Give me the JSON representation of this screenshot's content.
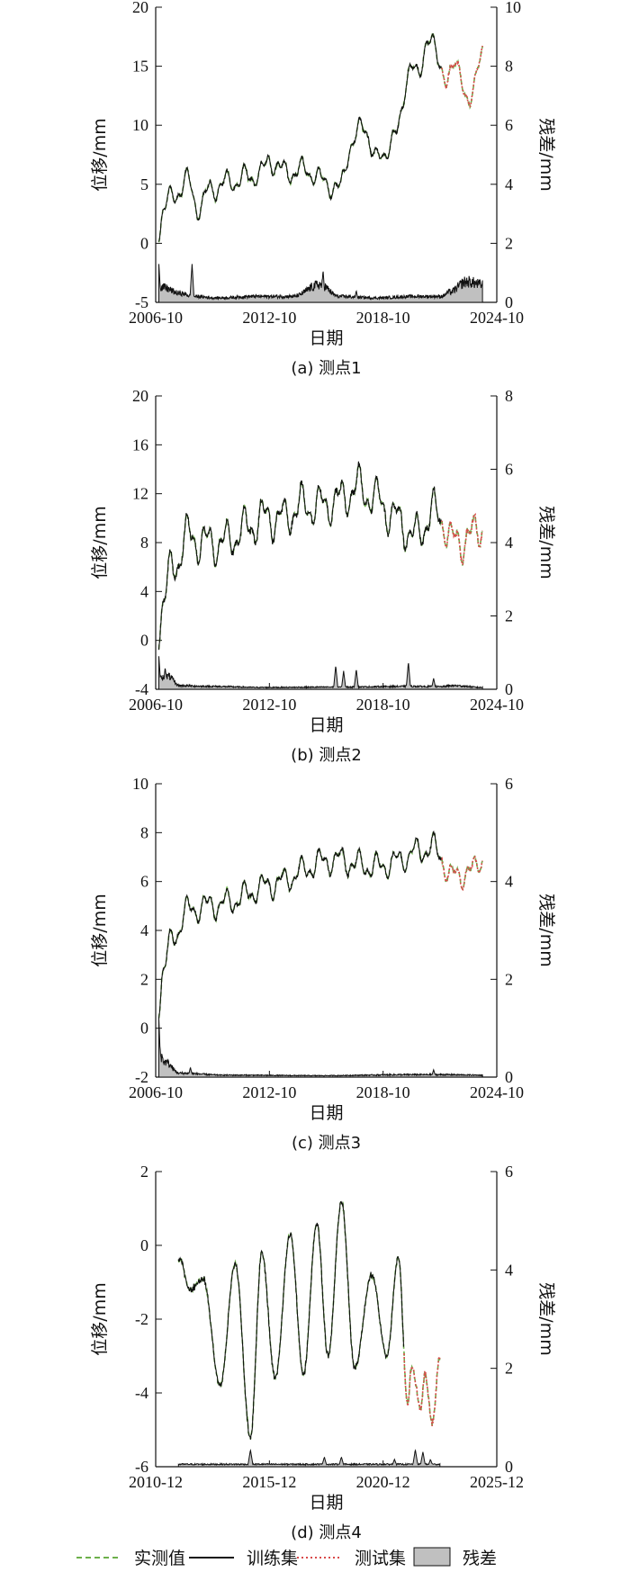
{
  "colors": {
    "measured": "#6cb04a",
    "train": "#111111",
    "test": "#d94a4a",
    "residual_fill": "#c0c0c0",
    "residual_line": "#111111"
  },
  "legend": [
    {
      "key": "measured",
      "label": "实测值",
      "style": "dashed-line"
    },
    {
      "key": "train",
      "label": "训练集",
      "style": "solid-line"
    },
    {
      "key": "test",
      "label": "测试集",
      "style": "dotted-line"
    },
    {
      "key": "residual",
      "label": "残差",
      "style": "filled-box"
    }
  ],
  "chart_data": [
    {
      "type": "line",
      "caption": "(a) 测点1",
      "xlabel": "日期",
      "ylabel": "位移/mm",
      "y2label": "残差/mm",
      "x_range": [
        "2006-10",
        "2024-10"
      ],
      "x_ticks": [
        "2006-10",
        "2012-10",
        "2018-10",
        "2024-10"
      ],
      "ylim": [
        -5,
        20
      ],
      "y_ticks": [
        -5,
        0,
        5,
        10,
        15,
        20
      ],
      "y2lim": [
        0,
        10
      ],
      "y2_ticks": [
        0,
        2,
        4,
        6,
        8,
        10
      ],
      "train_end": "2021-11",
      "test_end": "2024-01",
      "displacement_trend": [
        [
          "2006-12",
          1.0
        ],
        [
          "2007-03",
          3.0
        ],
        [
          "2007-09",
          4.0
        ],
        [
          "2008-06",
          5.3
        ],
        [
          "2009-01",
          3.0
        ],
        [
          "2009-09",
          4.6
        ],
        [
          "2010-09",
          5.2
        ],
        [
          "2011-09",
          5.6
        ],
        [
          "2012-05",
          6.0
        ],
        [
          "2012-10",
          7.0
        ],
        [
          "2013-09",
          6.0
        ],
        [
          "2014-09",
          6.2
        ],
        [
          "2015-09",
          5.2
        ],
        [
          "2016-06",
          4.5
        ],
        [
          "2017-02",
          8.5
        ],
        [
          "2017-10",
          10.0
        ],
        [
          "2018-06",
          7.0
        ],
        [
          "2019-06",
          9.0
        ],
        [
          "2020-03",
          15.0
        ],
        [
          "2020-08",
          14.0
        ],
        [
          "2021-02",
          17.5
        ],
        [
          "2021-11",
          15.0
        ],
        [
          "2022-03",
          14.0
        ],
        [
          "2022-10",
          15.0
        ],
        [
          "2023-05",
          11.5
        ],
        [
          "2024-01",
          17.0
        ]
      ],
      "displacement_amp": 1.6,
      "residual_trend": [
        [
          "2006-12",
          0.6
        ],
        [
          "2007-02",
          0.5
        ],
        [
          "2008-02",
          0.3
        ],
        [
          "2008-10",
          0.2
        ],
        [
          "2010-01",
          0.15
        ],
        [
          "2012-01",
          0.2
        ],
        [
          "2014-01",
          0.2
        ],
        [
          "2015-06",
          0.6
        ],
        [
          "2016-06",
          0.2
        ],
        [
          "2018-06",
          0.15
        ],
        [
          "2020-06",
          0.2
        ],
        [
          "2021-11",
          0.2
        ],
        [
          "2022-04",
          0.35
        ],
        [
          "2023-03",
          0.7
        ],
        [
          "2024-01",
          0.6
        ]
      ],
      "residual_spikes": [
        [
          "2006-12",
          1.3
        ],
        [
          "2008-09",
          1.3
        ],
        [
          "2015-08",
          1.1
        ],
        [
          "2017-05",
          0.4
        ]
      ]
    },
    {
      "type": "line",
      "caption": "(b) 测点2",
      "xlabel": "日期",
      "ylabel": "位移/mm",
      "y2label": "残差/mm",
      "x_range": [
        "2006-10",
        "2024-10"
      ],
      "x_ticks": [
        "2006-10",
        "2012-10",
        "2018-10",
        "2024-10"
      ],
      "ylim": [
        -4,
        20
      ],
      "y_ticks": [
        -4,
        0,
        4,
        8,
        12,
        16,
        20
      ],
      "y2lim": [
        0,
        8
      ],
      "y2_ticks": [
        0,
        2,
        4,
        6,
        8
      ],
      "train_end": "2021-11",
      "test_end": "2024-01",
      "displacement_trend": [
        [
          "2006-12",
          1.0
        ],
        [
          "2007-03",
          3.5
        ],
        [
          "2007-09",
          6.0
        ],
        [
          "2008-06",
          8.5
        ],
        [
          "2009-06",
          8.0
        ],
        [
          "2010-06",
          8.0
        ],
        [
          "2011-06",
          9.0
        ],
        [
          "2012-06",
          10.0
        ],
        [
          "2013-06",
          10.0
        ],
        [
          "2014-06",
          11.0
        ],
        [
          "2015-06",
          11.0
        ],
        [
          "2016-06",
          11.5
        ],
        [
          "2017-06",
          12.5
        ],
        [
          "2018-06",
          11.5
        ],
        [
          "2019-06",
          10.0
        ],
        [
          "2020-06",
          8.5
        ],
        [
          "2021-06",
          10.5
        ],
        [
          "2021-11",
          10.0
        ],
        [
          "2022-06",
          8.0
        ],
        [
          "2023-06",
          8.5
        ],
        [
          "2024-01",
          9.5
        ]
      ],
      "displacement_amp": 2.8,
      "residual_trend": [
        [
          "2006-12",
          0.3
        ],
        [
          "2007-06",
          0.35
        ],
        [
          "2008-01",
          0.1
        ],
        [
          "2009-06",
          0.08
        ],
        [
          "2012-06",
          0.05
        ],
        [
          "2016-06",
          0.06
        ],
        [
          "2020-06",
          0.08
        ],
        [
          "2021-11",
          0.07
        ],
        [
          "2022-06",
          0.1
        ],
        [
          "2024-01",
          0.05
        ]
      ],
      "residual_spikes": [
        [
          "2006-12",
          0.9
        ],
        [
          "2007-04",
          0.6
        ],
        [
          "2016-04",
          0.65
        ],
        [
          "2016-09",
          0.5
        ],
        [
          "2017-05",
          0.55
        ],
        [
          "2020-02",
          0.75
        ],
        [
          "2021-06",
          0.3
        ]
      ]
    },
    {
      "type": "line",
      "caption": "(c) 测点3",
      "xlabel": "日期",
      "ylabel": "位移/mm",
      "y2label": "残差/mm",
      "x_range": [
        "2006-10",
        "2024-10"
      ],
      "x_ticks": [
        "2006-10",
        "2012-10",
        "2018-10",
        "2024-10"
      ],
      "ylim": [
        -2,
        10
      ],
      "y_ticks": [
        -2,
        0,
        2,
        4,
        6,
        8,
        10
      ],
      "y2lim": [
        0,
        6
      ],
      "y2_ticks": [
        0,
        2,
        4,
        6
      ],
      "train_end": "2021-11",
      "test_end": "2024-01",
      "displacement_trend": [
        [
          "2006-12",
          1.0
        ],
        [
          "2007-03",
          2.5
        ],
        [
          "2007-09",
          3.7
        ],
        [
          "2008-06",
          4.8
        ],
        [
          "2009-06",
          5.0
        ],
        [
          "2010-06",
          5.1
        ],
        [
          "2011-06",
          5.4
        ],
        [
          "2012-06",
          5.8
        ],
        [
          "2013-06",
          6.0
        ],
        [
          "2014-06",
          6.4
        ],
        [
          "2015-06",
          6.8
        ],
        [
          "2016-06",
          6.9
        ],
        [
          "2017-06",
          6.7
        ],
        [
          "2018-06",
          6.6
        ],
        [
          "2019-06",
          6.8
        ],
        [
          "2020-06",
          7.2
        ],
        [
          "2021-06",
          7.4
        ],
        [
          "2021-11",
          7.0
        ],
        [
          "2022-04",
          6.2
        ],
        [
          "2023-06",
          6.4
        ],
        [
          "2024-01",
          7.0
        ]
      ],
      "displacement_amp": 0.9,
      "residual_trend": [
        [
          "2006-12",
          0.5
        ],
        [
          "2007-04",
          0.3
        ],
        [
          "2008-01",
          0.08
        ],
        [
          "2010-06",
          0.04
        ],
        [
          "2015-06",
          0.03
        ],
        [
          "2020-06",
          0.05
        ],
        [
          "2021-11",
          0.05
        ],
        [
          "2024-01",
          0.04
        ]
      ],
      "residual_spikes": [
        [
          "2006-12",
          1.2
        ],
        [
          "2007-05",
          0.35
        ],
        [
          "2008-08",
          0.2
        ],
        [
          "2021-06",
          0.15
        ]
      ]
    },
    {
      "type": "line",
      "caption": "(d) 测点4",
      "xlabel": "日期",
      "ylabel": "位移/mm",
      "y2label": "残差/mm",
      "x_range": [
        "2010-12",
        "2025-12"
      ],
      "x_ticks": [
        "2010-12",
        "2015-12",
        "2020-12",
        "2025-12"
      ],
      "ylim": [
        -6,
        2
      ],
      "y_ticks": [
        -6,
        -4,
        -2,
        0,
        2
      ],
      "y2lim": [
        0,
        6
      ],
      "y2_ticks": [
        0,
        2,
        4,
        6
      ],
      "train_end": "2021-11",
      "test_end": "2023-06",
      "displacement_peaks": [
        [
          "2012-01",
          -0.4
        ],
        [
          "2012-06",
          -1.2
        ],
        [
          "2013-01",
          -0.9
        ],
        [
          "2013-10",
          -3.8
        ],
        [
          "2014-06",
          -0.5
        ],
        [
          "2015-02",
          -5.2
        ],
        [
          "2015-08",
          -0.2
        ],
        [
          "2016-03",
          -3.6
        ],
        [
          "2016-11",
          0.3
        ],
        [
          "2017-06",
          -3.5
        ],
        [
          "2018-01",
          0.6
        ],
        [
          "2018-07",
          -3.0
        ],
        [
          "2019-02",
          1.2
        ],
        [
          "2019-09",
          -3.3
        ],
        [
          "2020-06",
          -0.8
        ],
        [
          "2021-02",
          -3.0
        ],
        [
          "2021-08",
          -0.3
        ],
        [
          "2022-01",
          -4.3
        ],
        [
          "2022-03",
          -3.3
        ],
        [
          "2022-08",
          -4.4
        ],
        [
          "2022-10",
          -3.5
        ],
        [
          "2023-02",
          -4.8
        ],
        [
          "2023-06",
          -3.0
        ],
        [
          "2023-08",
          -3.5
        ]
      ],
      "residual_trend": [
        [
          "2012-01",
          0.05
        ],
        [
          "2015-06",
          0.05
        ],
        [
          "2020-06",
          0.05
        ],
        [
          "2023-08",
          0.05
        ]
      ],
      "residual_spikes": [
        [
          "2015-02",
          0.35
        ],
        [
          "2018-05",
          0.2
        ],
        [
          "2019-02",
          0.2
        ],
        [
          "2021-06",
          0.15
        ],
        [
          "2022-05",
          0.35
        ],
        [
          "2022-09",
          0.3
        ],
        [
          "2023-01",
          0.15
        ]
      ]
    }
  ]
}
